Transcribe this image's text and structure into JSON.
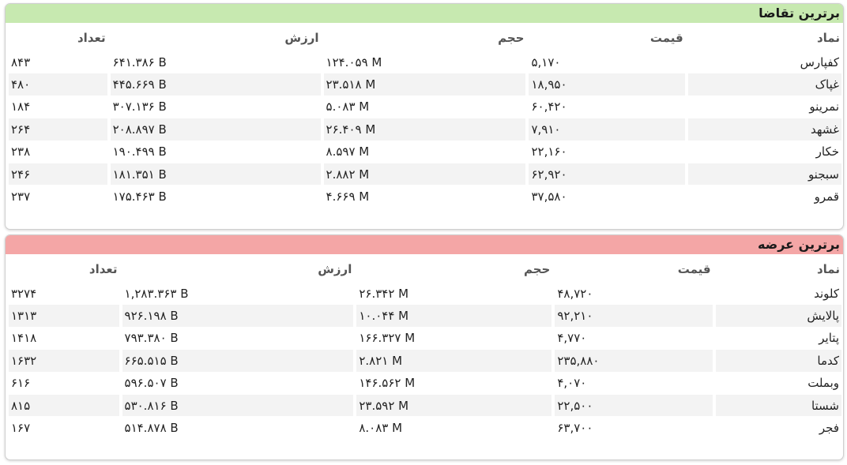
{
  "demand": {
    "title": "برترین تقاضا",
    "columns": {
      "symbol": "نماد",
      "price": "قیمت",
      "volume": "حجم",
      "value": "ارزش",
      "count": "تعداد"
    },
    "rows": [
      {
        "symbol": "کفپارس",
        "price": "۵,۱۷۰",
        "volume": "۱۲۴.۰۵۹ M",
        "value": "۶۴۱.۳۸۶ B",
        "count": "۸۴۳"
      },
      {
        "symbol": "غپاک",
        "price": "۱۸,۹۵۰",
        "volume": "۲۳.۵۱۸ M",
        "value": "۴۴۵.۶۶۹ B",
        "count": "۴۸۰"
      },
      {
        "symbol": "نمرینو",
        "price": "۶۰,۴۲۰",
        "volume": "۵.۰۸۳ M",
        "value": "۳۰۷.۱۳۶ B",
        "count": "۱۸۴"
      },
      {
        "symbol": "غشهد",
        "price": "۷,۹۱۰",
        "volume": "۲۶.۴۰۹ M",
        "value": "۲۰۸.۸۹۷ B",
        "count": "۲۶۴"
      },
      {
        "symbol": "خکار",
        "price": "۲۲,۱۶۰",
        "volume": "۸.۵۹۷ M",
        "value": "۱۹۰.۴۹۹ B",
        "count": "۲۳۸"
      },
      {
        "symbol": "سبجنو",
        "price": "۶۲,۹۲۰",
        "volume": "۲.۸۸۲ M",
        "value": "۱۸۱.۳۵۱ B",
        "count": "۲۴۶"
      },
      {
        "symbol": "قمرو",
        "price": "۳۷,۵۸۰",
        "volume": "۴.۶۶۹ M",
        "value": "۱۷۵.۴۶۳ B",
        "count": "۲۳۷"
      }
    ]
  },
  "supply": {
    "title": "برترین عرضه",
    "columns": {
      "symbol": "نماد",
      "price": "قیمت",
      "volume": "حجم",
      "value": "ارزش",
      "count": "تعداد"
    },
    "rows": [
      {
        "symbol": "کلوند",
        "price": "۴۸,۷۲۰",
        "volume": "۲۶.۳۴۲ M",
        "value": "۱,۲۸۳.۳۶۳ B",
        "count": "۳۲۷۴"
      },
      {
        "symbol": "پالایش",
        "price": "۹۲,۲۱۰",
        "volume": "۱۰.۰۴۴ M",
        "value": "۹۲۶.۱۹۸ B",
        "count": "۱۳۱۳"
      },
      {
        "symbol": "پتایر",
        "price": "۴,۷۷۰",
        "volume": "۱۶۶.۳۲۷ M",
        "value": "۷۹۳.۳۸۰ B",
        "count": "۱۴۱۸"
      },
      {
        "symbol": "کدما",
        "price": "۲۳۵,۸۸۰",
        "volume": "۲.۸۲۱ M",
        "value": "۶۶۵.۵۱۵ B",
        "count": "۱۶۳۲"
      },
      {
        "symbol": "وبملت",
        "price": "۴,۰۷۰",
        "volume": "۱۴۶.۵۶۲ M",
        "value": "۵۹۶.۵۰۷ B",
        "count": "۶۱۶"
      },
      {
        "symbol": "شستا",
        "price": "۲۲,۵۰۰",
        "volume": "۲۳.۵۹۲ M",
        "value": "۵۳۰.۸۱۶ B",
        "count": "۸۱۵"
      },
      {
        "symbol": "فجر",
        "price": "۶۳,۷۰۰",
        "volume": "۸.۰۸۳ M",
        "value": "۵۱۴.۸۷۸ B",
        "count": "۱۶۷"
      }
    ]
  }
}
